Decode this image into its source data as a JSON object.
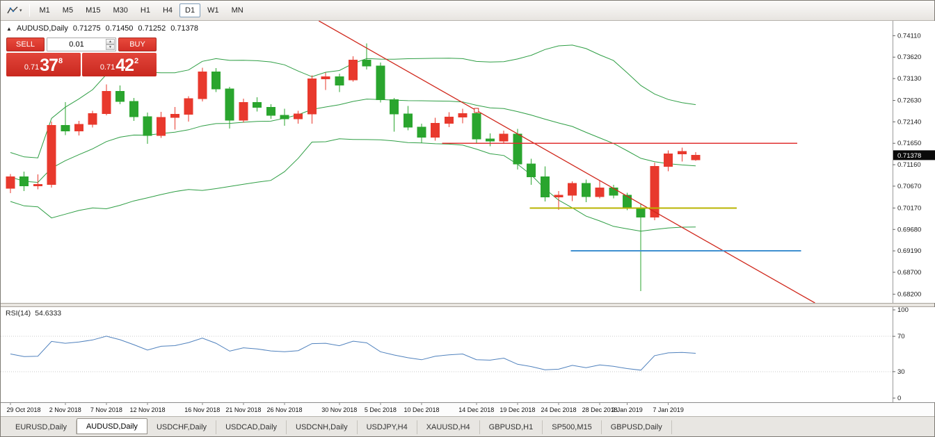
{
  "toolbar": {
    "timeframes": [
      "M1",
      "M5",
      "M15",
      "M30",
      "H1",
      "H4",
      "D1",
      "W1",
      "MN"
    ],
    "active_timeframe": "D1"
  },
  "icons": {
    "chart_shift_marker": "▲",
    "caret_down": "▾",
    "spinner_up": "▲",
    "spinner_down": "▼"
  },
  "header": {
    "symbol": "AUDUSD,Daily",
    "open": "0.71275",
    "high": "0.71450",
    "low": "0.71252",
    "close": "0.71378"
  },
  "trade_panel": {
    "sell_label": "SELL",
    "buy_label": "BUY",
    "volume": "0.01",
    "sell_price": {
      "prefix": "0.71",
      "big": "37",
      "sup": "8"
    },
    "buy_price": {
      "prefix": "0.71",
      "big": "42",
      "sup": "2"
    }
  },
  "colors": {
    "candle_up": "#e8392d",
    "candle_down": "#2aa52e",
    "bollinger": "#2e9e44",
    "axis_text": "#1a1a1a",
    "badge_bg": "#0a0a0a"
  },
  "chart_data": {
    "type": "candlestick",
    "symbol": "AUDUSD",
    "timeframe": "Daily",
    "columns": [
      "time",
      "open",
      "high",
      "low",
      "close"
    ],
    "candles": [
      [
        "29 Oct 2018",
        0.7062,
        0.7095,
        0.7051,
        0.7088
      ],
      [
        "30 Oct 2018",
        0.7088,
        0.71,
        0.7056,
        0.7068
      ],
      [
        "31 Oct 2018",
        0.7068,
        0.7094,
        0.706,
        0.7071
      ],
      [
        "1 Nov 2018",
        0.7071,
        0.7215,
        0.7064,
        0.7206
      ],
      [
        "2 Nov 2018",
        0.7206,
        0.7259,
        0.7184,
        0.7193
      ],
      [
        "5 Nov 2018",
        0.7193,
        0.7216,
        0.7183,
        0.7208
      ],
      [
        "6 Nov 2018",
        0.7208,
        0.7239,
        0.7201,
        0.7233
      ],
      [
        "7 Nov 2018",
        0.7233,
        0.73,
        0.7229,
        0.7284
      ],
      [
        "8 Nov 2018",
        0.7284,
        0.7297,
        0.7254,
        0.7261
      ],
      [
        "9 Nov 2018",
        0.7261,
        0.7269,
        0.7216,
        0.7226
      ],
      [
        "12 Nov 2018",
        0.7226,
        0.7235,
        0.7164,
        0.7183
      ],
      [
        "13 Nov 2018",
        0.7183,
        0.7237,
        0.7177,
        0.7224
      ],
      [
        "14 Nov 2018",
        0.7224,
        0.7248,
        0.7196,
        0.7231
      ],
      [
        "15 Nov 2018",
        0.7231,
        0.7273,
        0.7215,
        0.7267
      ],
      [
        "16 Nov 2018",
        0.7267,
        0.7338,
        0.7261,
        0.7328
      ],
      [
        "19 Nov 2018",
        0.7328,
        0.7337,
        0.7282,
        0.7289
      ],
      [
        "20 Nov 2018",
        0.7289,
        0.7294,
        0.7199,
        0.7218
      ],
      [
        "21 Nov 2018",
        0.7218,
        0.7267,
        0.7212,
        0.7258
      ],
      [
        "22 Nov 2018",
        0.7258,
        0.727,
        0.7238,
        0.7247
      ],
      [
        "23 Nov 2018",
        0.7247,
        0.7254,
        0.7221,
        0.7229
      ],
      [
        "26 Nov 2018",
        0.7229,
        0.7244,
        0.7205,
        0.7221
      ],
      [
        "27 Nov 2018",
        0.7221,
        0.7239,
        0.721,
        0.7232
      ],
      [
        "28 Nov 2018",
        0.7232,
        0.732,
        0.721,
        0.7312
      ],
      [
        "29 Nov 2018",
        0.7312,
        0.7327,
        0.7287,
        0.7317
      ],
      [
        "30 Nov 2018",
        0.7317,
        0.7324,
        0.7282,
        0.7298
      ],
      [
        "3 Dec 2018",
        0.731,
        0.7364,
        0.7306,
        0.7355
      ],
      [
        "4 Dec 2018",
        0.7355,
        0.7393,
        0.7334,
        0.7342
      ],
      [
        "5 Dec 2018",
        0.7342,
        0.735,
        0.7258,
        0.7265
      ],
      [
        "6 Dec 2018",
        0.7265,
        0.7269,
        0.7192,
        0.7232
      ],
      [
        "7 Dec 2018",
        0.7232,
        0.725,
        0.7195,
        0.7202
      ],
      [
        "10 Dec 2018",
        0.7202,
        0.721,
        0.7165,
        0.7179
      ],
      [
        "11 Dec 2018",
        0.7179,
        0.7223,
        0.7171,
        0.7211
      ],
      [
        "12 Dec 2018",
        0.7211,
        0.7236,
        0.7202,
        0.7225
      ],
      [
        "13 Dec 2018",
        0.7225,
        0.7244,
        0.7211,
        0.7233
      ],
      [
        "14 Dec 2018",
        0.7233,
        0.7236,
        0.7165,
        0.7175
      ],
      [
        "17 Dec 2018",
        0.7175,
        0.7188,
        0.7158,
        0.717
      ],
      [
        "18 Dec 2018",
        0.717,
        0.7194,
        0.7164,
        0.7186
      ],
      [
        "19 Dec 2018",
        0.7186,
        0.7198,
        0.7105,
        0.7118
      ],
      [
        "20 Dec 2018",
        0.7118,
        0.713,
        0.707,
        0.7088
      ],
      [
        "21 Dec 2018",
        0.7088,
        0.7112,
        0.7032,
        0.7042
      ],
      [
        "24 Dec 2018",
        0.7042,
        0.7056,
        0.7013,
        0.7046
      ],
      [
        "26 Dec 2018",
        0.7046,
        0.7078,
        0.7033,
        0.7073
      ],
      [
        "27 Dec 2018",
        0.7073,
        0.7082,
        0.703,
        0.7043
      ],
      [
        "28 Dec 2018",
        0.7043,
        0.708,
        0.7039,
        0.7063
      ],
      [
        "31 Dec 2018",
        0.7063,
        0.707,
        0.7039,
        0.7046
      ],
      [
        "2 Jan 2019",
        0.7046,
        0.7052,
        0.7012,
        0.7018
      ],
      [
        "3 Jan 2019",
        0.7018,
        0.7026,
        0.6827,
        0.6996
      ],
      [
        "4 Jan 2019",
        0.6996,
        0.7121,
        0.6989,
        0.7112
      ],
      [
        "7 Jan 2019",
        0.7112,
        0.7149,
        0.7101,
        0.7141
      ],
      [
        "8 Jan 2019",
        0.7141,
        0.7155,
        0.7123,
        0.7146
      ],
      [
        "9 Jan 2019",
        0.71275,
        0.7145,
        0.71252,
        0.71378
      ]
    ],
    "price_axis": {
      "max": 0.7445,
      "min": 0.68,
      "current": "0.71378",
      "labels": [
        "0.74110",
        "0.73620",
        "0.73130",
        "0.72630",
        "0.72140",
        "0.71650",
        "0.71160",
        "0.70670",
        "0.70170",
        "0.69680",
        "0.69190",
        "0.68700",
        "0.68200"
      ]
    },
    "time_axis": [
      {
        "i": 0,
        "t": "29 Oct 2018"
      },
      {
        "i": 4,
        "t": "2 Nov 2018"
      },
      {
        "i": 7,
        "t": "7 Nov 2018"
      },
      {
        "i": 10,
        "t": "12 Nov 2018"
      },
      {
        "i": 14,
        "t": "16 Nov 2018"
      },
      {
        "i": 17,
        "t": "21 Nov 2018"
      },
      {
        "i": 20,
        "t": "26 Nov 2018"
      },
      {
        "i": 24,
        "t": "30 Nov 2018"
      },
      {
        "i": 27,
        "t": "5 Dec 2018"
      },
      {
        "i": 30,
        "t": "10 Dec 2018"
      },
      {
        "i": 34,
        "t": "14 Dec 2018"
      },
      {
        "i": 37,
        "t": "19 Dec 2018"
      },
      {
        "i": 40,
        "t": "24 Dec 2018"
      },
      {
        "i": 43,
        "t": "28 Dec 2018"
      },
      {
        "i": 45,
        "t": "2 Jan 2019"
      },
      {
        "i": 48,
        "t": "7 Jan 2019"
      }
    ],
    "indicators": {
      "bollinger": {
        "period": 20,
        "deviation": 2,
        "color": "#2e9e44"
      },
      "rsi": {
        "name": "RSI(14)",
        "period": 14,
        "value_label": "54.6333",
        "color": "#4f81bd",
        "levels": [
          {
            "v": 100,
            "label": "100"
          },
          {
            "v": 70,
            "label": "70"
          },
          {
            "v": 30,
            "label": "30"
          },
          {
            "v": 0,
            "label": "0"
          }
        ]
      }
    },
    "objects": {
      "trendline": {
        "color": "#d0281c",
        "width": 1.3,
        "p1": {
          "index": 22.5,
          "price": 0.7445
        },
        "p2": {
          "index": 58.7,
          "price": 0.68
        },
        "marker_index": 34
      },
      "hlines": [
        {
          "name": "resistance-line-red",
          "price": 0.7165,
          "from": 31.5,
          "to": 57.4,
          "color": "#e03131",
          "width": 1.4
        },
        {
          "name": "support-line-olive",
          "price": 0.7017,
          "from": 37.9,
          "to": 53.0,
          "color": "#b9b400",
          "width": 2
        },
        {
          "name": "support-line-blue",
          "price": 0.6919,
          "from": 40.9,
          "to": 57.7,
          "color": "#3f8fd0",
          "width": 2
        }
      ]
    }
  },
  "tabs": {
    "active": "AUDUSD,Daily",
    "items": [
      "EURUSD,Daily",
      "AUDUSD,Daily",
      "USDCHF,Daily",
      "USDCAD,Daily",
      "USDCNH,Daily",
      "USDJPY,H4",
      "XAUUSD,H4",
      "GBPUSD,H1",
      "SP500,M15",
      "GBPUSD,Daily"
    ]
  }
}
